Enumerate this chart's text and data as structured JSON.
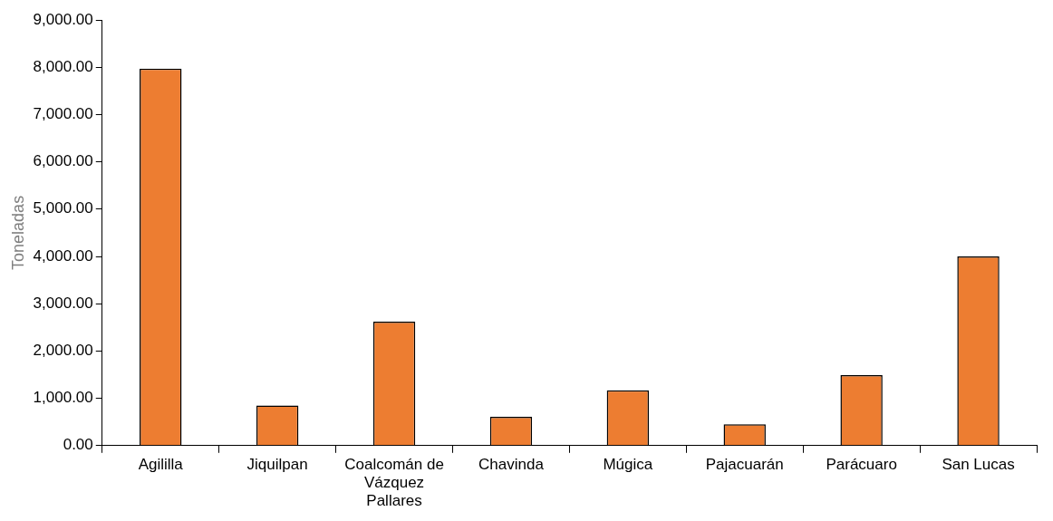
{
  "chart_data": {
    "type": "bar",
    "ylabel": "Toneladas",
    "categories": [
      "Agililla",
      "Jiquilpan",
      "Coalcomán de Vázquez Pallares",
      "Chavinda",
      "Múgica",
      "Pajacuarán",
      "Parácuaro",
      "San Lucas"
    ],
    "values": [
      7970,
      850,
      2620,
      610,
      1170,
      450,
      1490,
      4000
    ],
    "color": "#ed7d31",
    "ylim": [
      0,
      9000
    ],
    "yticks": [
      {
        "value": 0,
        "label": "0.00"
      },
      {
        "value": 1000,
        "label": "1,000.00"
      },
      {
        "value": 2000,
        "label": "2,000.00"
      },
      {
        "value": 3000,
        "label": "3,000.00"
      },
      {
        "value": 4000,
        "label": "4,000.00"
      },
      {
        "value": 5000,
        "label": "5,000.00"
      },
      {
        "value": 6000,
        "label": "6,000.00"
      },
      {
        "value": 7000,
        "label": "7,000.00"
      },
      {
        "value": 8000,
        "label": "8,000.00"
      },
      {
        "value": 9000,
        "label": "9,000.00"
      }
    ],
    "grid": false,
    "legend": false
  }
}
